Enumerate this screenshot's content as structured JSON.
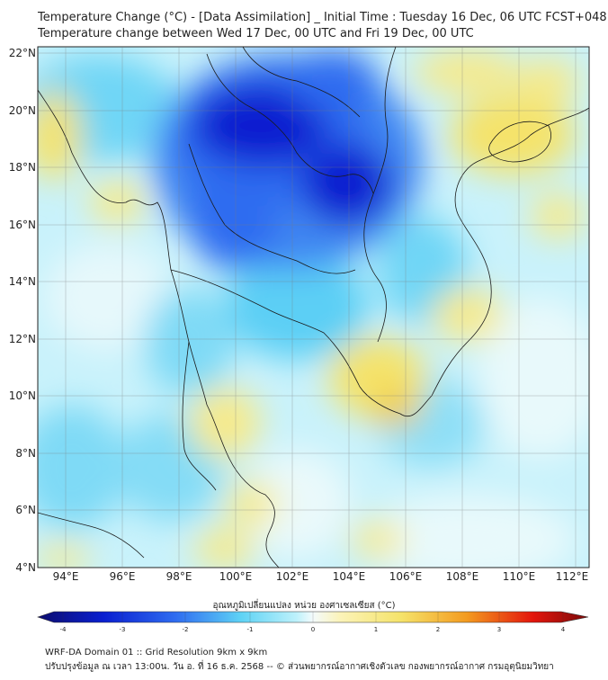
{
  "header": {
    "title_line1": "Temperature Change (°C) - [Data Assimilation] _ Initial Time : Tuesday 16 Dec, 06 UTC FCST+048",
    "title_line2": "Temperature change between Wed 17 Dec, 00 UTC and Fri 19 Dec, 00 UTC"
  },
  "map": {
    "lat_labels": [
      "22°N",
      "20°N",
      "18°N",
      "16°N",
      "14°N",
      "12°N",
      "10°N",
      "8°N",
      "6°N",
      "4°N"
    ],
    "lon_labels": [
      "94°E",
      "96°E",
      "98°E",
      "100°E",
      "102°E",
      "104°E",
      "106°E",
      "108°E",
      "110°E",
      "112°E"
    ]
  },
  "colorbar": {
    "title": "อุณหภูมิเปลี่ยนแปลง หน่วย องศาเซลเซียส (°C)",
    "ticks": [
      "-4",
      "-3",
      "-2",
      "-1",
      "0",
      "1",
      "2",
      "3",
      "4"
    ]
  },
  "footer": {
    "line1": "WRF-DA Domain 01 :: Grid Resolution 9km x 9km",
    "line2": "ปรับปรุงข้อมูล ณ เวลา 13:00น. วัน อ. ที่ 16 ธ.ค. 2568 -- © ส่วนพยากรณ์อากาศเชิงตัวเลข กองพยากรณ์อากาศ กรมอุตุนิยมวิทยา"
  },
  "colors": {
    "deep_blue": "#0a1fd0",
    "mid_blue": "#2f6cf0",
    "cyan": "#5fd3f5",
    "light_cyan": "#bdf1fb",
    "neutral": "#f4fbfc",
    "light_yellow": "#fbf3b8",
    "yellow": "#f5e36a",
    "orange": "#f39a1f",
    "red": "#e3150c",
    "dark_red": "#7a0a0a",
    "navy": "#0d0d6e"
  }
}
